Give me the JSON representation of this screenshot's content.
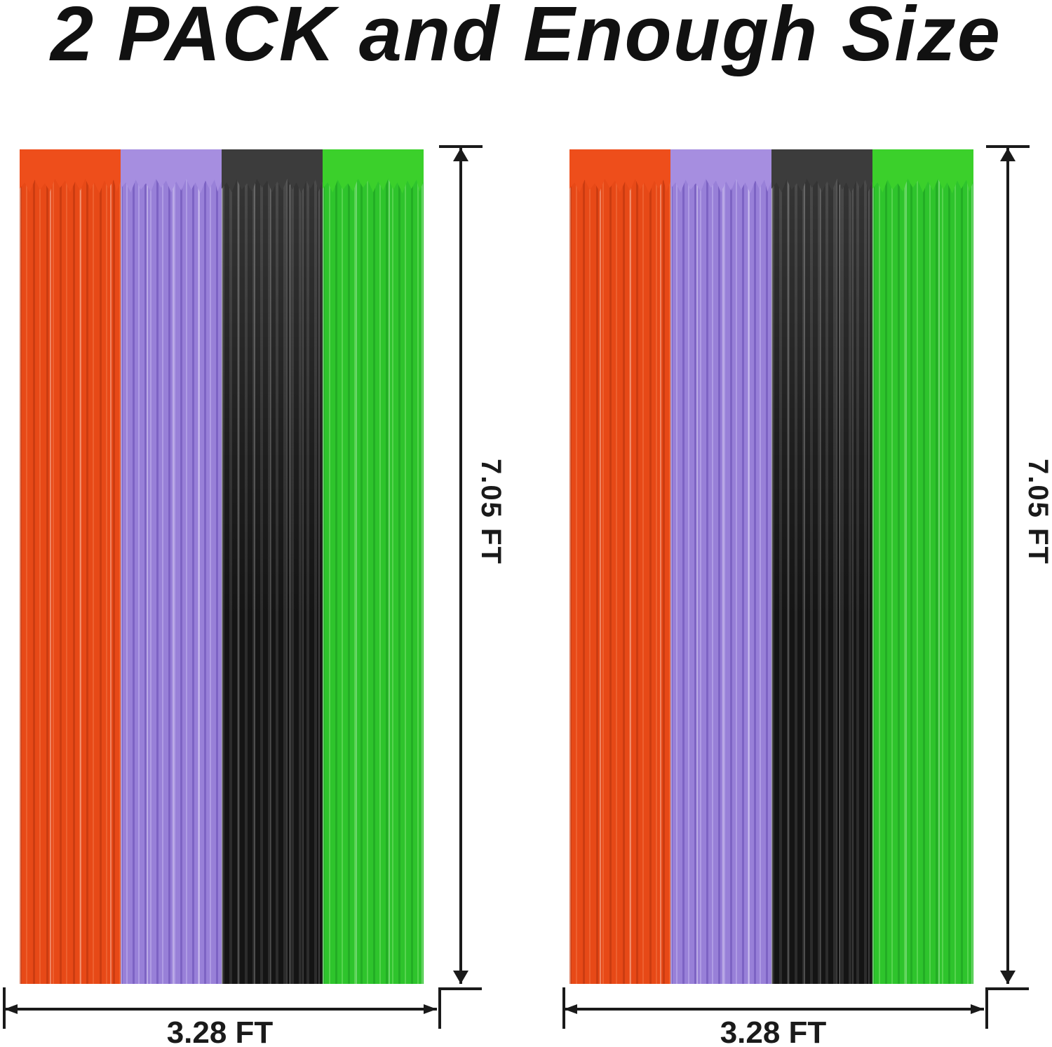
{
  "title": "2 PACK and Enough Size",
  "curtains": [
    {
      "name": "left curtain",
      "height_label": "7.05 FT",
      "width_label": "3.28 FT",
      "stripe_order": [
        "orange",
        "purple",
        "black",
        "green"
      ]
    },
    {
      "name": "right curtain",
      "height_label": "7.05 FT",
      "width_label": "3.28 FT",
      "stripe_order": [
        "orange",
        "purple",
        "black",
        "green"
      ]
    }
  ],
  "colors": {
    "orange_foil": "#ee4e1b",
    "purple_foil": "#9880d8",
    "black_foil": "#141414",
    "green_foil": "#2ec42c",
    "dimension_lines": "#1a1a1a",
    "title_text": "#111111",
    "background": "#ffffff"
  }
}
